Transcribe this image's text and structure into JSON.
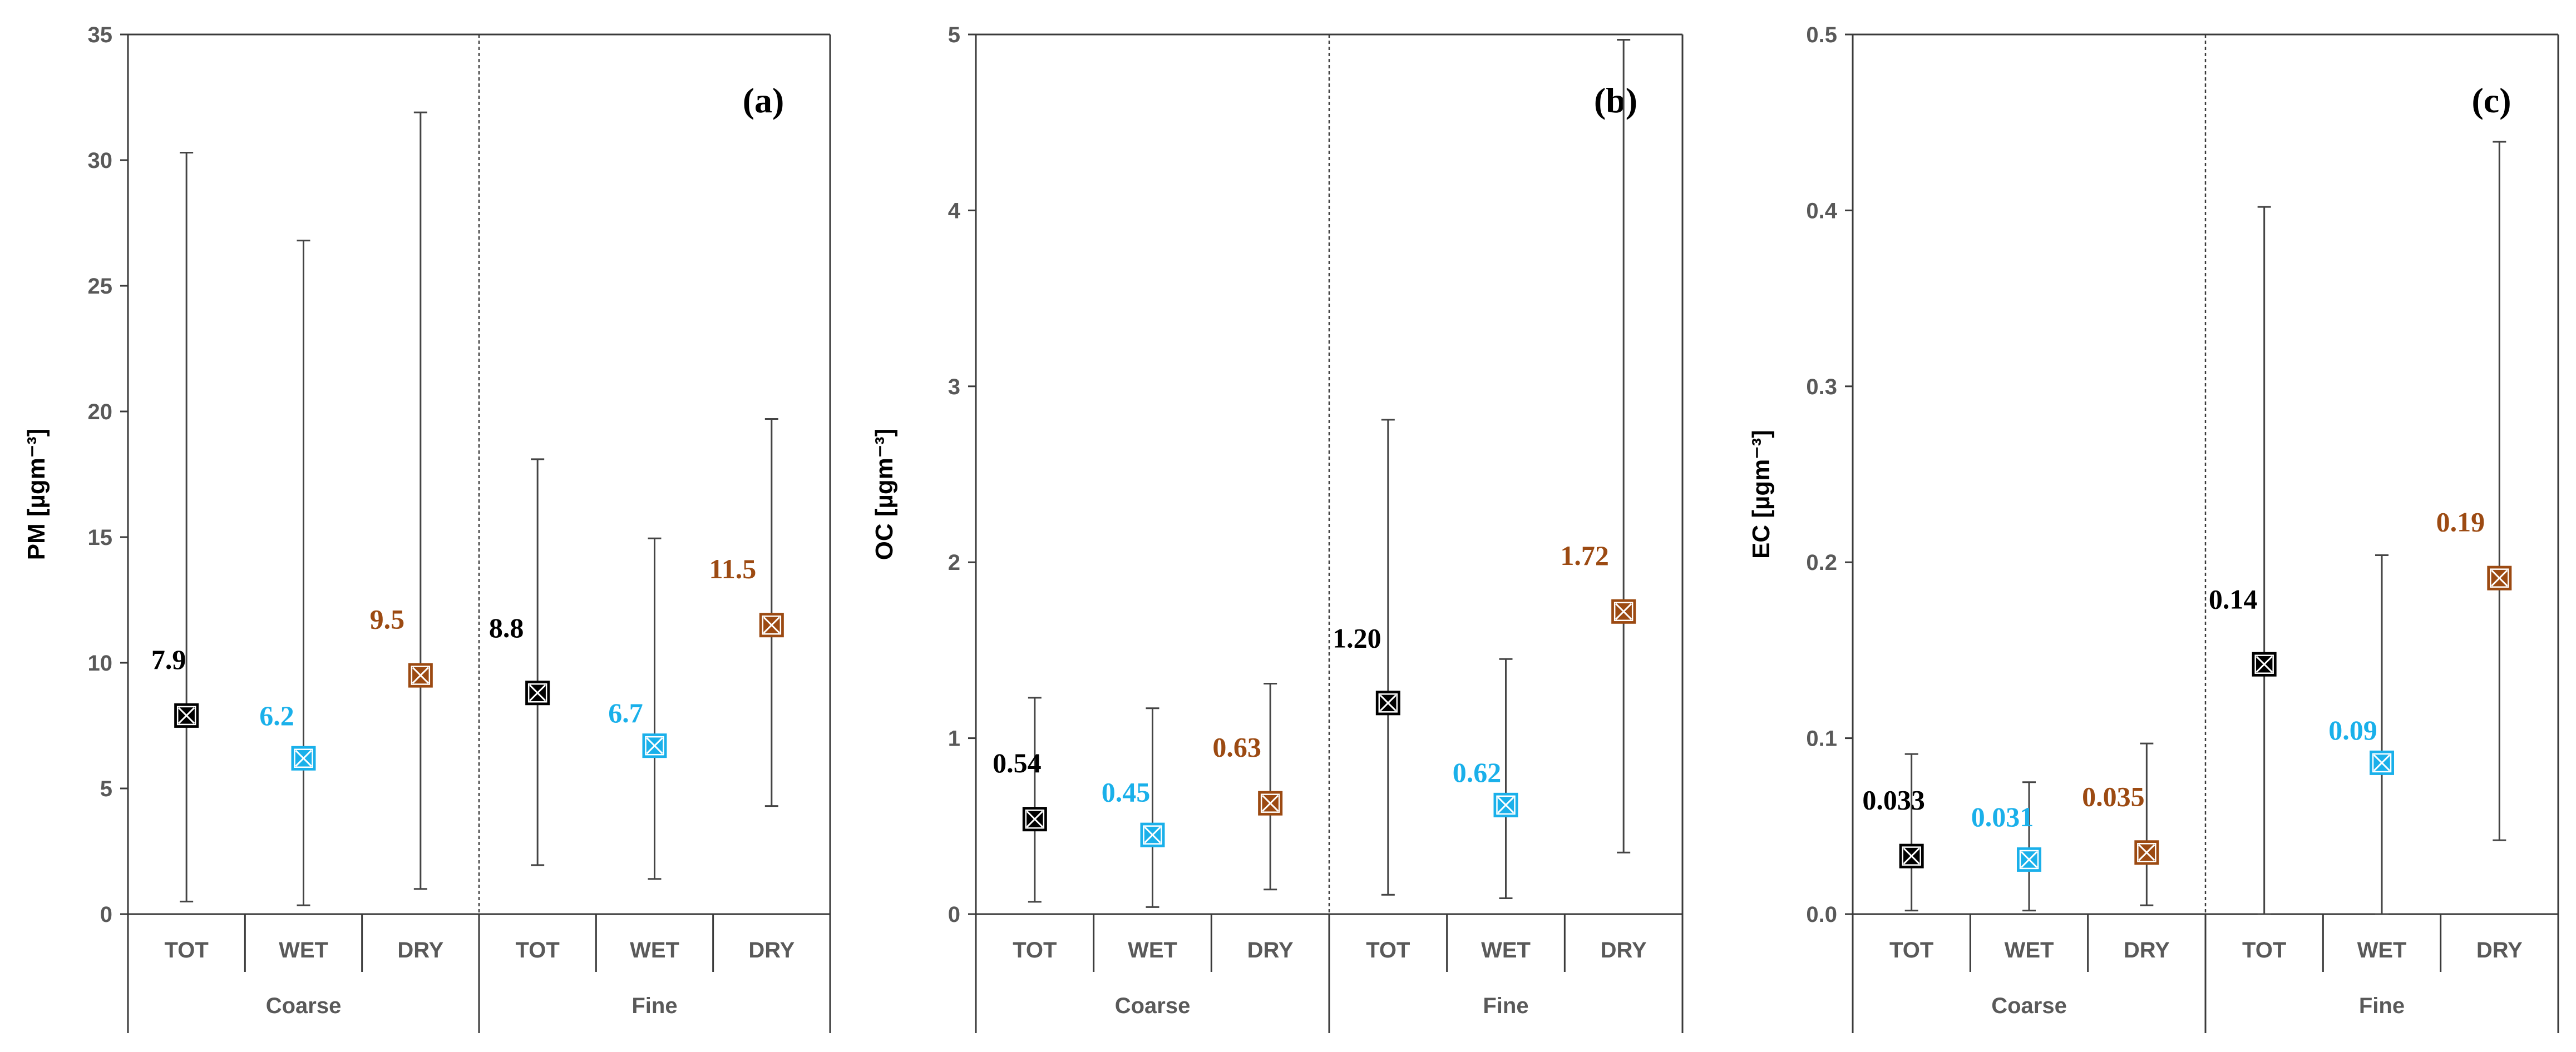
{
  "colors": {
    "TOT": "#000000",
    "WET": "#1ab0ea",
    "DRY": "#9c4a12"
  },
  "chart_data": [
    {
      "type": "scatter",
      "panel_label": "a",
      "ylabel": "PM [µgm⁻³]",
      "ylim": [
        0,
        35
      ],
      "yticks": [
        "0",
        "5",
        "10",
        "15",
        "20",
        "25",
        "30",
        "35"
      ],
      "yticks_values": [
        0,
        5,
        10,
        15,
        20,
        25,
        30,
        35
      ],
      "groups": [
        "Coarse",
        "Fine"
      ],
      "categories": [
        "TOT",
        "WET",
        "DRY",
        "TOT",
        "WET",
        "DRY"
      ],
      "values": [
        7.9,
        6.2,
        9.5,
        8.8,
        6.7,
        11.5
      ],
      "value_labels": [
        "7.9",
        "6.2",
        "9.5",
        "8.8",
        "6.7",
        "11.5"
      ],
      "min": [
        0.5,
        0.35,
        1.0,
        1.95,
        1.4,
        4.3
      ],
      "max": [
        30.3,
        26.8,
        31.9,
        18.1,
        14.95,
        19.7
      ],
      "grid": false
    },
    {
      "type": "scatter",
      "panel_label": "b",
      "ylabel": "OC [µgm⁻³]",
      "ylim": [
        0,
        5
      ],
      "yticks": [
        "0",
        "1",
        "2",
        "3",
        "4",
        "5"
      ],
      "yticks_values": [
        0,
        1,
        2,
        3,
        4,
        5
      ],
      "groups": [
        "Coarse",
        "Fine"
      ],
      "categories": [
        "TOT",
        "WET",
        "DRY",
        "TOT",
        "WET",
        "DRY"
      ],
      "values": [
        0.54,
        0.45,
        0.63,
        1.2,
        0.62,
        1.72
      ],
      "value_labels": [
        "0.54",
        "0.45",
        "0.63",
        "1.20",
        "0.62",
        "1.72"
      ],
      "min": [
        0.07,
        0.04,
        0.14,
        0.11,
        0.09,
        0.35
      ],
      "max": [
        1.23,
        1.17,
        1.31,
        2.81,
        1.45,
        4.97
      ],
      "grid": false
    },
    {
      "type": "scatter",
      "panel_label": "c",
      "ylabel": "EC [µgm⁻³]",
      "ylim": [
        0,
        0.5
      ],
      "yticks": [
        "0.0",
        "0.1",
        "0.2",
        "0.3",
        "0.4",
        "0.5"
      ],
      "yticks_values": [
        0,
        0.1,
        0.2,
        0.3,
        0.4,
        0.5
      ],
      "groups": [
        "Coarse",
        "Fine"
      ],
      "categories": [
        "TOT",
        "WET",
        "DRY",
        "TOT",
        "WET",
        "DRY"
      ],
      "values": [
        0.033,
        0.031,
        0.035,
        0.142,
        0.086,
        0.191
      ],
      "value_labels": [
        "0.033",
        "0.031",
        "0.035",
        "0.14",
        "0.09",
        "0.19"
      ],
      "min": [
        0.002,
        0.002,
        0.005,
        0.0,
        0.0,
        0.042
      ],
      "max": [
        0.091,
        0.075,
        0.097,
        0.402,
        0.204,
        0.439
      ],
      "grid": false
    }
  ]
}
